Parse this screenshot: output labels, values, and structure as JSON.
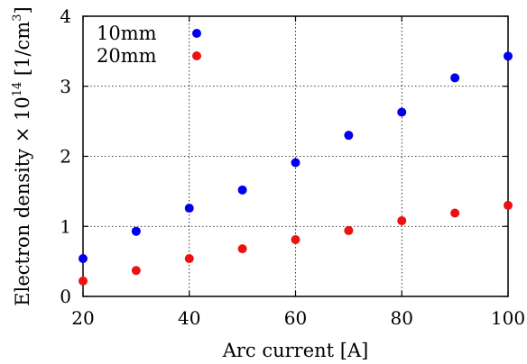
{
  "chart_data": {
    "type": "scatter",
    "xlabel": "Arc current [A]",
    "ylabel": {
      "prefix": "Electron density × 10",
      "exponent": "14",
      "unit_open": " [1/cm",
      "unit_exponent": "3",
      "unit_close": "]"
    },
    "xlim": [
      20,
      100
    ],
    "ylim": [
      0,
      4
    ],
    "xticks": [
      20,
      40,
      60,
      80,
      100
    ],
    "yticks": [
      0,
      1,
      2,
      3,
      4
    ],
    "grid": true,
    "legend_position": "top-left",
    "series": [
      {
        "name": "10mm",
        "color": "#0000ee",
        "x": [
          20,
          30,
          40,
          50,
          60,
          70,
          80,
          90,
          100
        ],
        "y": [
          0.54,
          0.93,
          1.26,
          1.52,
          1.91,
          2.3,
          2.63,
          3.12,
          3.43
        ]
      },
      {
        "name": "20mm",
        "color": "#ee1111",
        "x": [
          20,
          30,
          40,
          50,
          60,
          70,
          80,
          90,
          100
        ],
        "y": [
          0.22,
          0.37,
          0.54,
          0.68,
          0.81,
          0.94,
          1.08,
          1.19,
          1.3
        ]
      }
    ]
  }
}
